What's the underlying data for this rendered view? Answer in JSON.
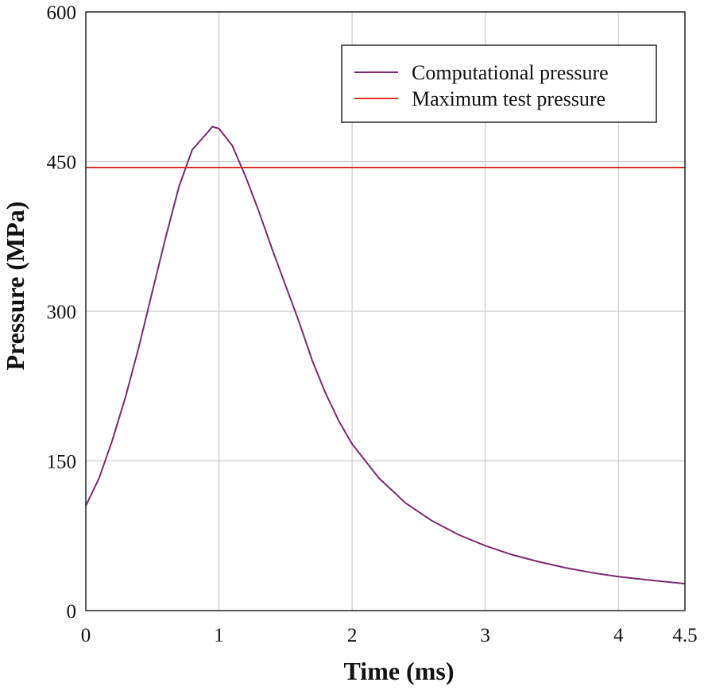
{
  "chart_data": {
    "type": "line",
    "title": "",
    "xlabel": "Time (ms)",
    "ylabel": "Pressure (MPa)",
    "xlim": [
      0,
      4.5
    ],
    "ylim": [
      0,
      600
    ],
    "xticks": [
      0,
      1,
      2,
      3,
      4,
      4.5
    ],
    "xtick_labels": [
      "0",
      "1",
      "2",
      "3",
      "4",
      "4.5"
    ],
    "yticks": [
      0,
      150,
      300,
      450,
      600
    ],
    "ytick_labels": [
      "0",
      "150",
      "300",
      "450",
      "600"
    ],
    "grid": true,
    "legend_position": "top-right",
    "series": [
      {
        "name": "Computational pressure",
        "color": "#7a2a6e",
        "x": [
          0,
          0.1,
          0.2,
          0.3,
          0.4,
          0.5,
          0.6,
          0.7,
          0.8,
          0.9,
          0.95,
          1.0,
          1.1,
          1.2,
          1.3,
          1.4,
          1.5,
          1.6,
          1.7,
          1.8,
          1.9,
          2.0,
          2.2,
          2.4,
          2.6,
          2.8,
          3.0,
          3.2,
          3.4,
          3.6,
          3.8,
          4.0,
          4.2,
          4.5
        ],
        "y": [
          105,
          133,
          171,
          215,
          265,
          320,
          374,
          425,
          462,
          477,
          485,
          483,
          466,
          435,
          400,
          362,
          326,
          290,
          251,
          218,
          190,
          167,
          133,
          108,
          90,
          76,
          65,
          56,
          49,
          43,
          38,
          34,
          31,
          27
        ]
      },
      {
        "name": "Maximum test pressure",
        "color": "#d9312a",
        "x": [
          0,
          4.5
        ],
        "y": [
          444,
          444
        ]
      }
    ]
  }
}
